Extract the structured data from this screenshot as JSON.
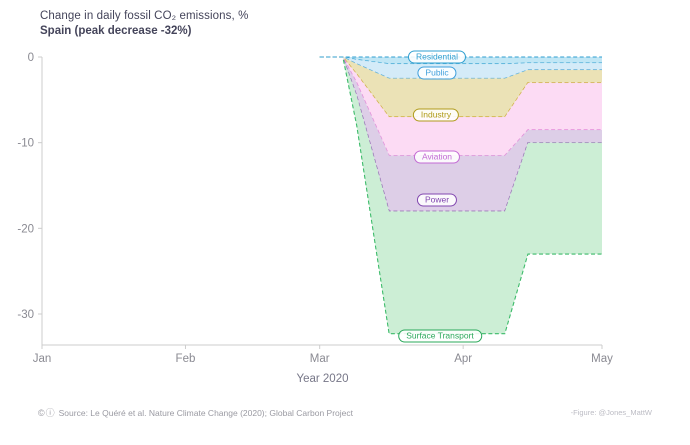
{
  "footer": {
    "license_icons": "©ⓘ",
    "source": "Source: Le Quéré et al. Nature Climate Change (2020); Global Carbon Project",
    "credit": "-Figure: @Jones_MattW"
  },
  "chart_data": {
    "type": "area",
    "stacked": true,
    "title": "Change in daily fossil CO₂ emissions, %",
    "subtitle": "Spain (peak decrease -32%)",
    "xlabel": "Year 2020",
    "x_ticks": [
      "Jan",
      "Feb",
      "Mar",
      "Apr",
      "May"
    ],
    "x_tick_days": [
      0,
      31,
      60,
      91,
      121
    ],
    "y_ticks": [
      0,
      -10,
      -20,
      -30
    ],
    "ylim": [
      -33.6,
      1.4
    ],
    "legend_position": "on-chart-labels",
    "grid": false,
    "x_days": [
      60,
      65,
      68,
      75,
      100,
      105,
      121
    ],
    "peak_total_change_pct": -32.3,
    "series": [
      {
        "name": "Residential",
        "values": [
          0,
          0,
          -0.3,
          -0.8,
          -0.8,
          -0.7,
          -0.7
        ],
        "fill": "#b9e3f4",
        "stroke": "#2f9fd0",
        "label_color": "#2f9fd0"
      },
      {
        "name": "Public",
        "values": [
          0,
          0,
          -0.5,
          -1.7,
          -1.7,
          -0.8,
          -0.8
        ],
        "fill": "#cfe9f7",
        "stroke": "#4aa8e0",
        "label_color": "#3f9fdc"
      },
      {
        "name": "Industry",
        "values": [
          0,
          0,
          -1.2,
          -4.5,
          -4.5,
          -1.5,
          -1.5
        ],
        "fill": "#e9dfae",
        "stroke": "#c9a92c",
        "label_color": "#b09a1a"
      },
      {
        "name": "Aviation",
        "values": [
          0,
          0,
          -1.0,
          -4.5,
          -4.5,
          -5.5,
          -5.5
        ],
        "fill": "#fcd7f3",
        "stroke": "#e583d8",
        "label_color": "#c36bd4"
      },
      {
        "name": "Power",
        "values": [
          0,
          0,
          -1.5,
          -6.5,
          -6.5,
          -1.5,
          -1.5
        ],
        "fill": "#d9c9e4",
        "stroke": "#8e5fb0",
        "label_color": "#8248b0"
      },
      {
        "name": "Surface Transport",
        "values": [
          0,
          0,
          -3.5,
          -14.3,
          -14.3,
          -13.0,
          -13.0
        ],
        "fill": "#c7ecd0",
        "stroke": "#3dbb6a",
        "label_color": "#2aa85a"
      }
    ]
  }
}
